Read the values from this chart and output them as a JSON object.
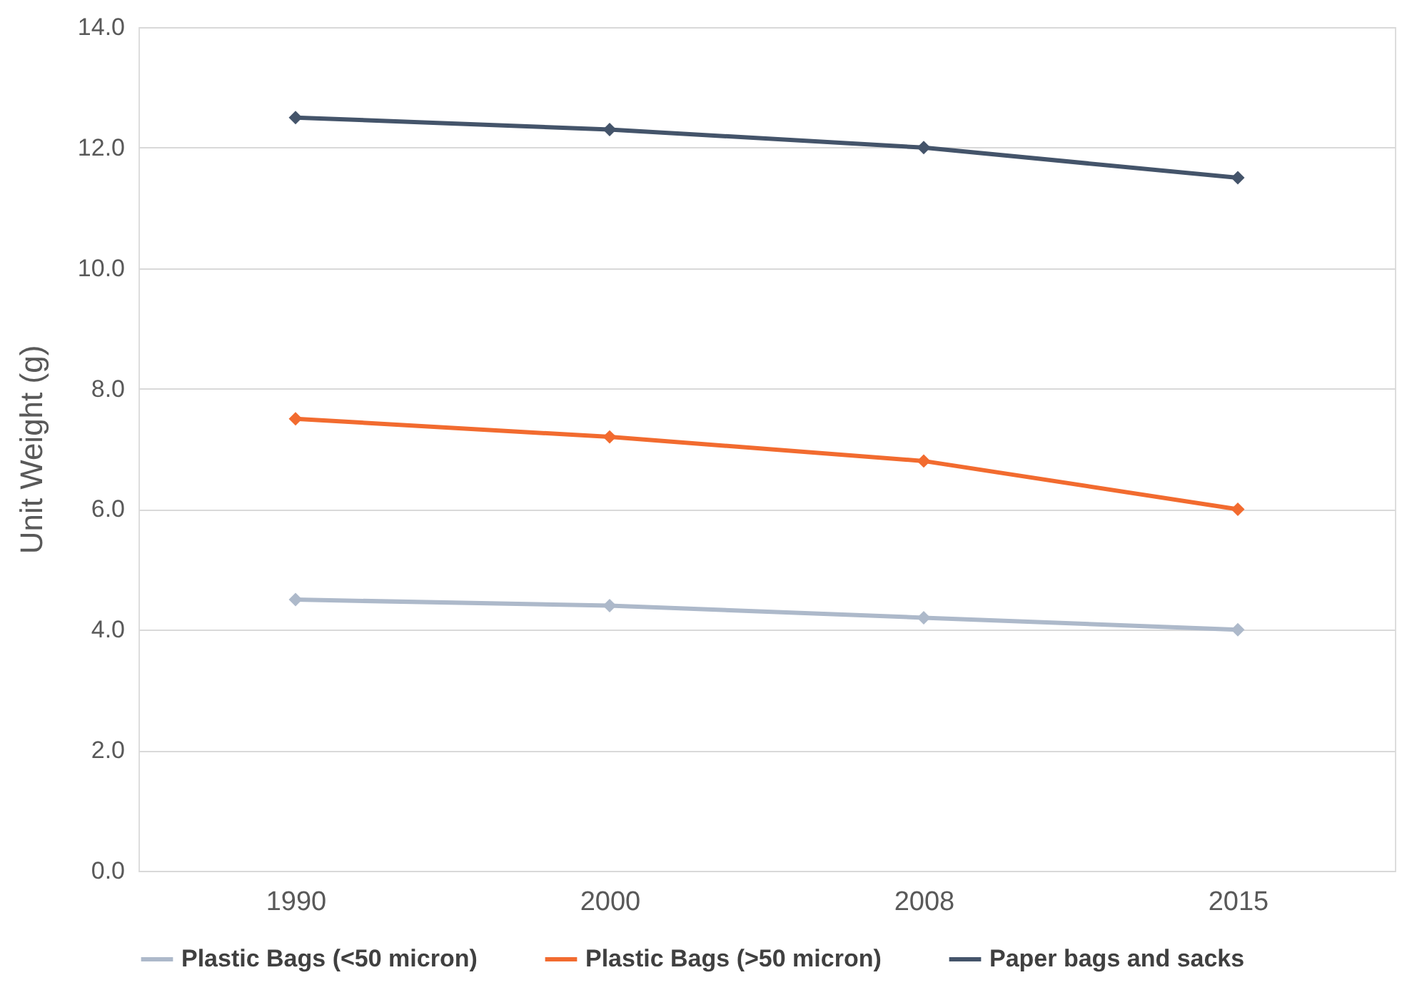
{
  "chart_data": {
    "type": "line",
    "ylabel": "Unit Weight (g)",
    "categories": [
      "1990",
      "2000",
      "2008",
      "2015"
    ],
    "series": [
      {
        "name": "Plastic Bags (<50 micron)",
        "color": "#adb9ca",
        "values": [
          4.5,
          4.4,
          4.2,
          4.0
        ]
      },
      {
        "name": "Plastic Bags (>50 micron)",
        "color": "#f26b2f",
        "values": [
          7.5,
          7.2,
          6.8,
          6.0
        ]
      },
      {
        "name": "Paper bags and sacks",
        "color": "#44546a",
        "values": [
          12.5,
          12.3,
          12.0,
          11.5
        ]
      }
    ],
    "ylim": [
      0,
      14
    ],
    "yticks": [
      {
        "value": 0,
        "label": "0.0"
      },
      {
        "value": 2,
        "label": "2.0"
      },
      {
        "value": 4,
        "label": "4.0"
      },
      {
        "value": 6,
        "label": "6.0"
      },
      {
        "value": 8,
        "label": "8.0"
      },
      {
        "value": 10,
        "label": "10.0"
      },
      {
        "value": 12,
        "label": "12.0"
      },
      {
        "value": 14,
        "label": "14.0"
      }
    ],
    "grid": "y",
    "legend": "bottom",
    "marker": "diamond",
    "line_style": "solid"
  }
}
